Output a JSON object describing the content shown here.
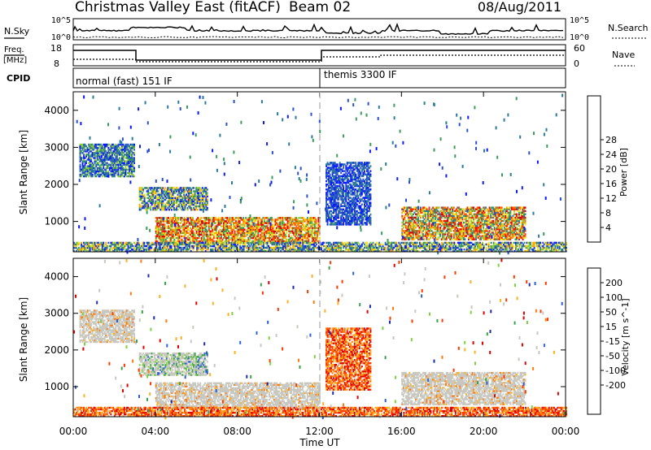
{
  "header": {
    "title": "Christmas Valley East (fitACF)",
    "beam": "Beam 02",
    "date": "08/Aug/2011"
  },
  "strip_panels": {
    "nsky": {
      "label": "N.Sky",
      "ticks": [
        "10^5",
        "10^0"
      ],
      "right_label": "N.Search",
      "right_ticks": [
        "10^5",
        "10^0"
      ]
    },
    "freq": {
      "label_top": "Freq.",
      "label_unit": "[MHz]",
      "ticks": [
        "18",
        "8"
      ],
      "right_label": "Nave",
      "right_ticks": [
        "60",
        "0"
      ]
    },
    "cpid": {
      "label": "CPID",
      "programs": [
        "normal (fast) 151 IF",
        "themis 3300 IF"
      ]
    }
  },
  "chart_data": [
    {
      "type": "heatmap",
      "name": "power",
      "ylabel": "Slant Range [km]",
      "ylim": [
        180,
        4500
      ],
      "yticks": [
        "1000",
        "2000",
        "3000",
        "4000"
      ],
      "xlim_hours": [
        0,
        24
      ],
      "xticks": [
        "00:00",
        "04:00",
        "08:00",
        "12:00",
        "16:00",
        "20:00",
        "00:00"
      ],
      "colorbar": {
        "label": "Power [dB]",
        "ticks": [
          "4",
          "8",
          "12",
          "16",
          "20",
          "24",
          "28"
        ],
        "colors": [
          "#0a1aff",
          "#2a4fd0",
          "#2a7a9a",
          "#3c9b5a",
          "#8fcf3a",
          "#f2e21a",
          "#ffa800",
          "#ff6a00",
          "#ff2a00",
          "#e00000"
        ]
      },
      "regions": [
        {
          "t0": 0.3,
          "t1": 3.0,
          "r0": 2200,
          "r1": 3100,
          "level": "mixed-low"
        },
        {
          "t0": 3.2,
          "t1": 6.5,
          "r0": 1300,
          "r1": 1900,
          "level": "mixed-mid"
        },
        {
          "t0": 4.0,
          "t1": 12.0,
          "r0": 400,
          "r1": 1100,
          "level": "high"
        },
        {
          "t0": 12.3,
          "t1": 14.5,
          "r0": 900,
          "r1": 2600,
          "level": "low"
        },
        {
          "t0": 16.0,
          "t1": 22.0,
          "r0": 500,
          "r1": 1400,
          "level": "mixed-high"
        },
        {
          "t0": 0.0,
          "t1": 24.0,
          "r0": 180,
          "r1": 450,
          "level": "mixed-mid"
        }
      ]
    },
    {
      "type": "heatmap",
      "name": "velocity",
      "ylabel": "Slant Range [km]",
      "ylim": [
        180,
        4500
      ],
      "yticks": [
        "1000",
        "2000",
        "3000",
        "4000"
      ],
      "xlabel": "Time UT",
      "xlim_hours": [
        0,
        24
      ],
      "xticks": [
        "00:00",
        "04:00",
        "08:00",
        "12:00",
        "16:00",
        "20:00",
        "00:00"
      ],
      "colorbar": {
        "label": "Velocity [m s^-1]",
        "ticks": [
          "200",
          "100",
          "50",
          "15",
          "-15",
          "-50",
          "-100",
          "-200"
        ],
        "colors": [
          "#1a2aaa",
          "#2a5fd6",
          "#3aa04a",
          "#7fd040",
          "#c8c8c0",
          "#c8c8c0",
          "#ffb020",
          "#ff7a10",
          "#ff3a00",
          "#e00000"
        ]
      },
      "regions": [
        {
          "t0": 0.3,
          "t1": 3.0,
          "r0": 2200,
          "r1": 3100,
          "level": "ground"
        },
        {
          "t0": 3.2,
          "t1": 6.5,
          "r0": 1300,
          "r1": 1900,
          "level": "ground-mixed"
        },
        {
          "t0": 4.0,
          "t1": 12.0,
          "r0": 400,
          "r1": 1100,
          "level": "ground"
        },
        {
          "t0": 12.3,
          "t1": 14.5,
          "r0": 900,
          "r1": 2600,
          "level": "away"
        },
        {
          "t0": 16.0,
          "t1": 22.0,
          "r0": 500,
          "r1": 1400,
          "level": "ground"
        },
        {
          "t0": 0.0,
          "t1": 24.0,
          "r0": 180,
          "r1": 450,
          "level": "away"
        }
      ]
    }
  ],
  "colors": {
    "axis": "#000000",
    "dashed_marker": "#bbbbbb"
  }
}
